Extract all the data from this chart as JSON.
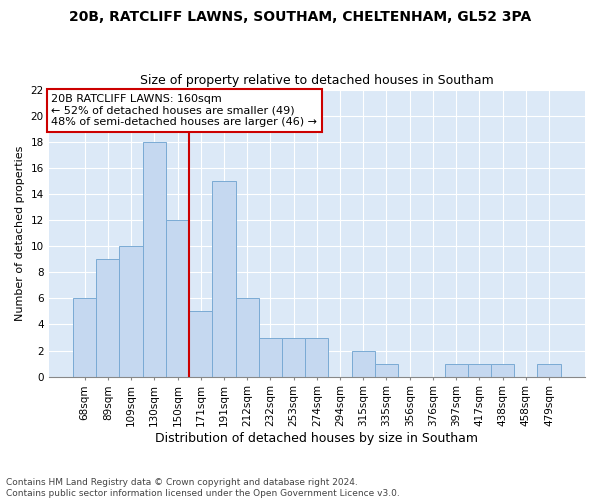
{
  "title1": "20B, RATCLIFF LAWNS, SOUTHAM, CHELTENHAM, GL52 3PA",
  "title2": "Size of property relative to detached houses in Southam",
  "xlabel": "Distribution of detached houses by size in Southam",
  "ylabel": "Number of detached properties",
  "categories": [
    "68sqm",
    "89sqm",
    "109sqm",
    "130sqm",
    "150sqm",
    "171sqm",
    "191sqm",
    "212sqm",
    "232sqm",
    "253sqm",
    "274sqm",
    "294sqm",
    "315sqm",
    "335sqm",
    "356sqm",
    "376sqm",
    "397sqm",
    "417sqm",
    "438sqm",
    "458sqm",
    "479sqm"
  ],
  "values": [
    6,
    9,
    10,
    18,
    12,
    5,
    15,
    6,
    3,
    3,
    3,
    0,
    2,
    1,
    0,
    0,
    1,
    1,
    1,
    0,
    1
  ],
  "bar_color": "#c5d8f0",
  "bar_edge_color": "#7aaad4",
  "vline_x_idx": 4.5,
  "vline_color": "#cc0000",
  "annotation_text": "20B RATCLIFF LAWNS: 160sqm\n← 52% of detached houses are smaller (49)\n48% of semi-detached houses are larger (46) →",
  "annotation_box_color": "#ffffff",
  "annotation_box_edge_color": "#cc0000",
  "ylim": [
    0,
    22
  ],
  "yticks": [
    0,
    2,
    4,
    6,
    8,
    10,
    12,
    14,
    16,
    18,
    20,
    22
  ],
  "footer": "Contains HM Land Registry data © Crown copyright and database right 2024.\nContains public sector information licensed under the Open Government Licence v3.0.",
  "fig_bg_color": "#ffffff",
  "plot_bg_color": "#dce9f7",
  "grid_color": "#ffffff",
  "title1_fontsize": 10,
  "title2_fontsize": 9,
  "xlabel_fontsize": 9,
  "ylabel_fontsize": 8,
  "tick_fontsize": 7.5,
  "footer_fontsize": 6.5,
  "annotation_fontsize": 8
}
